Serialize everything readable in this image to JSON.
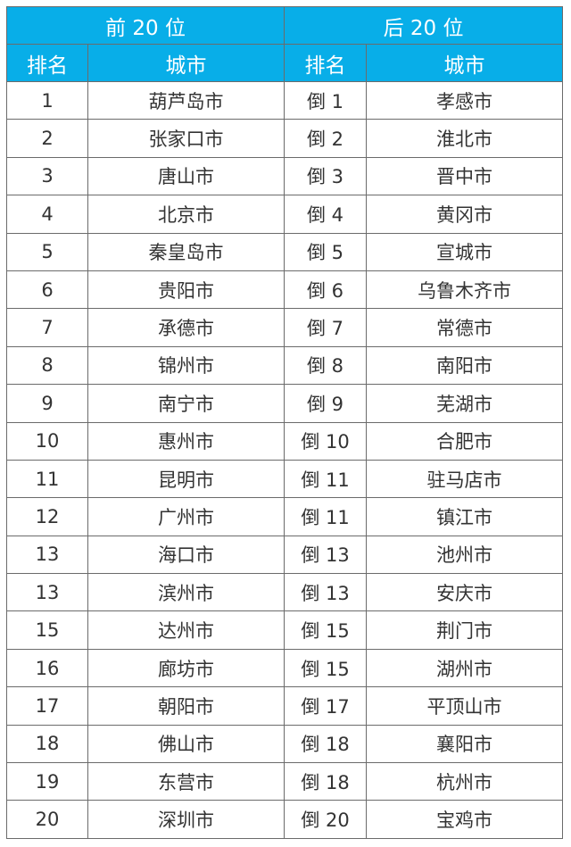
{
  "header": {
    "top": "前 20 位",
    "bottom": "后 20 位",
    "rank": "排名",
    "city": "城市"
  },
  "header_color": "#08aee8",
  "rows": [
    {
      "top_rank": "1",
      "top_city": "葫芦岛市",
      "bottom_rank": "倒 1",
      "bottom_city": "孝感市"
    },
    {
      "top_rank": "2",
      "top_city": "张家口市",
      "bottom_rank": "倒 2",
      "bottom_city": "淮北市"
    },
    {
      "top_rank": "3",
      "top_city": "唐山市",
      "bottom_rank": "倒 3",
      "bottom_city": "晋中市"
    },
    {
      "top_rank": "4",
      "top_city": "北京市",
      "bottom_rank": "倒 4",
      "bottom_city": "黄冈市"
    },
    {
      "top_rank": "5",
      "top_city": "秦皇岛市",
      "bottom_rank": "倒 5",
      "bottom_city": "宣城市"
    },
    {
      "top_rank": "6",
      "top_city": "贵阳市",
      "bottom_rank": "倒 6",
      "bottom_city": "乌鲁木齐市"
    },
    {
      "top_rank": "7",
      "top_city": "承德市",
      "bottom_rank": "倒 7",
      "bottom_city": "常德市"
    },
    {
      "top_rank": "8",
      "top_city": "锦州市",
      "bottom_rank": "倒 8",
      "bottom_city": "南阳市"
    },
    {
      "top_rank": "9",
      "top_city": "南宁市",
      "bottom_rank": "倒 9",
      "bottom_city": "芜湖市"
    },
    {
      "top_rank": "10",
      "top_city": "惠州市",
      "bottom_rank": "倒 10",
      "bottom_city": "合肥市"
    },
    {
      "top_rank": "11",
      "top_city": "昆明市",
      "bottom_rank": "倒 11",
      "bottom_city": "驻马店市"
    },
    {
      "top_rank": "12",
      "top_city": "广州市",
      "bottom_rank": "倒 11",
      "bottom_city": "镇江市"
    },
    {
      "top_rank": "13",
      "top_city": "海口市",
      "bottom_rank": "倒 13",
      "bottom_city": "池州市"
    },
    {
      "top_rank": "13",
      "top_city": "滨州市",
      "bottom_rank": "倒 13",
      "bottom_city": "安庆市"
    },
    {
      "top_rank": "15",
      "top_city": "达州市",
      "bottom_rank": "倒 15",
      "bottom_city": "荆门市"
    },
    {
      "top_rank": "16",
      "top_city": "廊坊市",
      "bottom_rank": "倒 15",
      "bottom_city": "湖州市"
    },
    {
      "top_rank": "17",
      "top_city": "朝阳市",
      "bottom_rank": "倒 17",
      "bottom_city": "平顶山市"
    },
    {
      "top_rank": "18",
      "top_city": "佛山市",
      "bottom_rank": "倒 18",
      "bottom_city": "襄阳市"
    },
    {
      "top_rank": "19",
      "top_city": "东营市",
      "bottom_rank": "倒 18",
      "bottom_city": "杭州市"
    },
    {
      "top_rank": "20",
      "top_city": "深圳市",
      "bottom_rank": "倒 20",
      "bottom_city": "宝鸡市"
    }
  ]
}
